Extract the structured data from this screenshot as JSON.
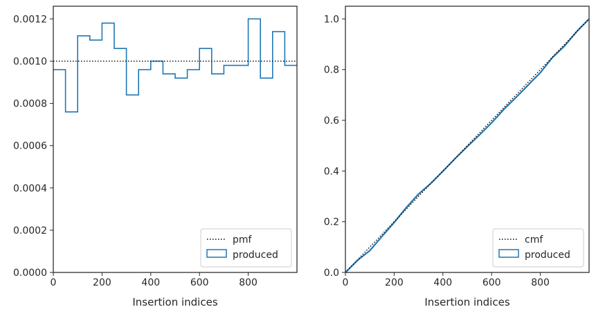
{
  "chart_data": [
    {
      "type": "line",
      "subtype": "step-histogram",
      "title": "",
      "xlabel": "Insertion indices",
      "ylabel": "",
      "xlim": [
        0,
        1000
      ],
      "ylim": [
        0,
        0.00126
      ],
      "grid": false,
      "legend_position": "lower-right",
      "x_ticks": [
        0,
        200,
        400,
        600,
        800
      ],
      "x_tick_labels": [
        "0",
        "200",
        "400",
        "600",
        "800"
      ],
      "y_ticks": [
        0,
        0.0002,
        0.0004,
        0.0006,
        0.0008,
        0.001,
        0.0012
      ],
      "y_tick_labels": [
        "0.0000",
        "0.0002",
        "0.0004",
        "0.0006",
        "0.0008",
        "0.0010",
        "0.0012"
      ],
      "series": [
        {
          "name": "pmf",
          "style": "dotted",
          "color": "#000000",
          "x": [
            0,
            1000
          ],
          "y": [
            0.001,
            0.001
          ]
        },
        {
          "name": "produced",
          "style": "step",
          "color": "#1f77b4",
          "bin_edges": [
            0,
            50,
            100,
            150,
            200,
            250,
            300,
            350,
            400,
            450,
            500,
            550,
            600,
            650,
            700,
            750,
            800,
            850,
            900,
            950,
            1000
          ],
          "values": [
            0.00096,
            0.00076,
            0.00112,
            0.0011,
            0.00118,
            0.00106,
            0.00084,
            0.00096,
            0.001,
            0.00094,
            0.00092,
            0.00096,
            0.00106,
            0.00094,
            0.00098,
            0.00098,
            0.0012,
            0.00092,
            0.00114,
            0.00098
          ]
        }
      ]
    },
    {
      "type": "line",
      "subtype": "cumulative",
      "title": "",
      "xlabel": "Insertion indices",
      "ylabel": "",
      "xlim": [
        0,
        1000
      ],
      "ylim": [
        0,
        1.05
      ],
      "grid": false,
      "legend_position": "lower-right",
      "x_ticks": [
        0,
        200,
        400,
        600,
        800
      ],
      "x_tick_labels": [
        "0",
        "200",
        "400",
        "600",
        "800"
      ],
      "y_ticks": [
        0,
        0.2,
        0.4,
        0.6,
        0.8,
        1.0
      ],
      "y_tick_labels": [
        "0.0",
        "0.2",
        "0.4",
        "0.6",
        "0.8",
        "1.0"
      ],
      "series": [
        {
          "name": "cmf",
          "style": "dotted",
          "color": "#000000",
          "x": [
            0,
            1000
          ],
          "y": [
            0,
            1
          ]
        },
        {
          "name": "produced",
          "style": "solid",
          "color": "#1f77b4",
          "x": [
            0,
            50,
            100,
            150,
            200,
            250,
            300,
            350,
            400,
            450,
            500,
            550,
            600,
            650,
            700,
            750,
            800,
            850,
            900,
            950,
            1000
          ],
          "y": [
            0,
            0.048,
            0.086,
            0.142,
            0.197,
            0.256,
            0.309,
            0.351,
            0.399,
            0.449,
            0.496,
            0.542,
            0.59,
            0.643,
            0.69,
            0.739,
            0.788,
            0.848,
            0.894,
            0.951,
            1.0
          ]
        }
      ]
    }
  ]
}
